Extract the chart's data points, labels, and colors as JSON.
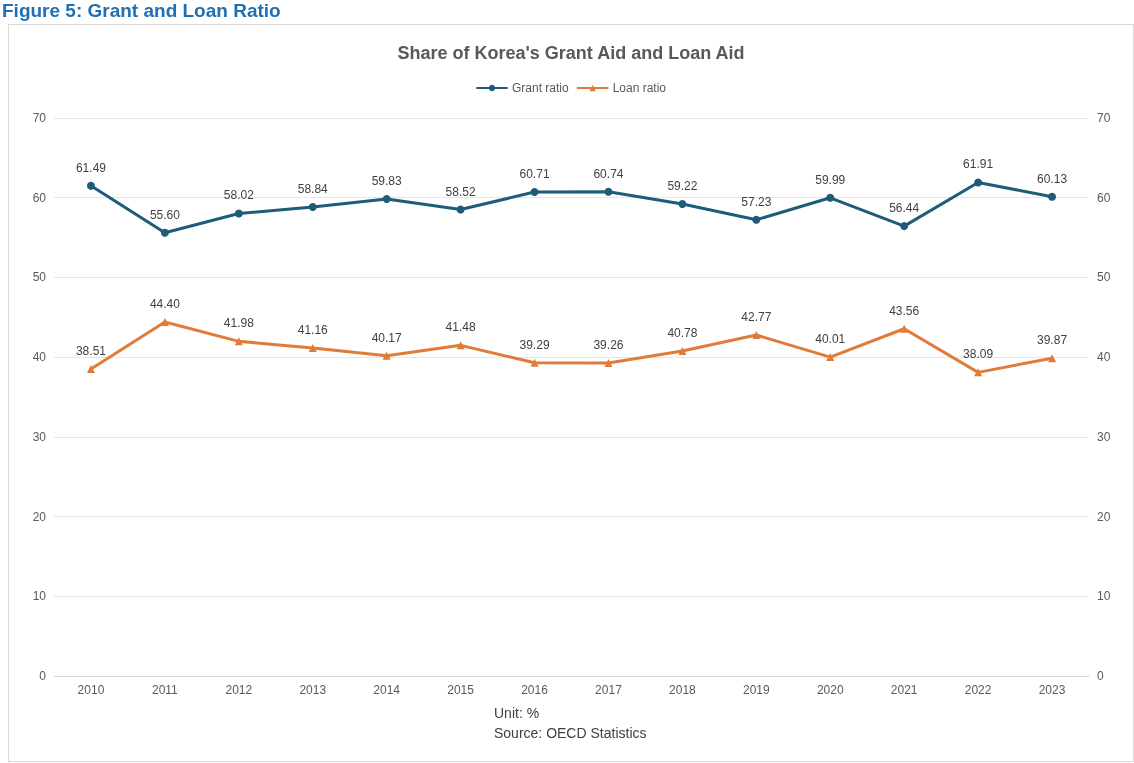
{
  "chart_data": {
    "type": "line",
    "title": "Figure 5: Grant and Loan Ratio",
    "subtitle": "Share of Korea's Grant Aid and Loan Aid",
    "categories": [
      "2010",
      "2011",
      "2012",
      "2013",
      "2014",
      "2015",
      "2016",
      "2017",
      "2018",
      "2019",
      "2020",
      "2021",
      "2022",
      "2023"
    ],
    "series": [
      {
        "name": "Grant ratio",
        "color": "#1f5c7a",
        "marker": "circle",
        "values": [
          61.49,
          55.6,
          58.02,
          58.84,
          59.83,
          58.52,
          60.71,
          60.74,
          59.22,
          57.23,
          59.99,
          56.44,
          61.91,
          60.13
        ],
        "value_labels": [
          "61.49",
          "55.60",
          "58.02",
          "58.84",
          "59.83",
          "58.52",
          "60.71",
          "60.74",
          "59.22",
          "57.23",
          "59.99",
          "56.44",
          "61.91",
          "60.13"
        ]
      },
      {
        "name": "Loan ratio",
        "color": "#e07b39",
        "marker": "triangle",
        "values": [
          38.51,
          44.4,
          41.98,
          41.16,
          40.17,
          41.48,
          39.29,
          39.26,
          40.78,
          42.77,
          40.01,
          43.56,
          38.09,
          39.87
        ],
        "value_labels": [
          "38.51",
          "44.40",
          "41.98",
          "41.16",
          "40.17",
          "41.48",
          "39.29",
          "39.26",
          "40.78",
          "42.77",
          "40.01",
          "43.56",
          "38.09",
          "39.87"
        ]
      }
    ],
    "ylim": [
      0,
      70
    ],
    "yticks": [
      0,
      10,
      20,
      30,
      40,
      50,
      60,
      70
    ],
    "y2lim": [
      0,
      70
    ],
    "y2ticks": [
      0,
      10,
      20,
      30,
      40,
      50,
      60,
      70
    ],
    "grid": "y",
    "legend": "top",
    "line_style": "solid",
    "annotations": [
      "Unit: %",
      "Source: OECD Statistics"
    ]
  }
}
